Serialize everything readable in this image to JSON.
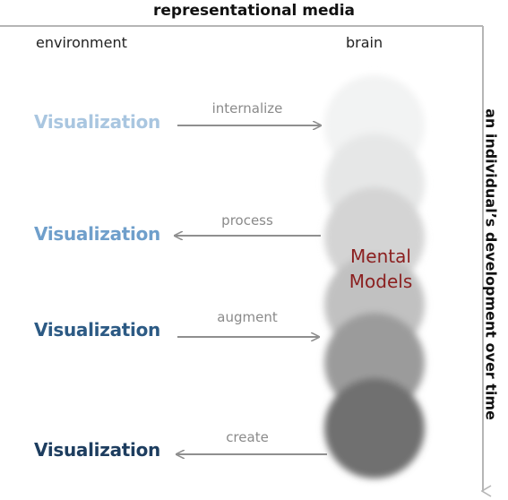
{
  "title": "representational media",
  "columns": {
    "left": "environment",
    "right": "brain"
  },
  "side_axis": "an individual’s development over time",
  "center": {
    "line1": "Mental",
    "line2": "Models"
  },
  "rows": [
    {
      "viz": "Visualization",
      "action": "internalize",
      "direction": "to-brain",
      "color": "#a9c6e0"
    },
    {
      "viz": "Visualization",
      "action": "process",
      "direction": "to-environment",
      "color": "#6f9fcb"
    },
    {
      "viz": "Visualization",
      "action": "augment",
      "direction": "to-brain",
      "color": "#2c5a84"
    },
    {
      "viz": "Visualization",
      "action": "create",
      "direction": "to-environment",
      "color": "#1d3d5f"
    }
  ],
  "colors": {
    "frame": "#b5b5b5",
    "arrow": "#8f8f8f",
    "mental_models": "#8b1f1f"
  }
}
